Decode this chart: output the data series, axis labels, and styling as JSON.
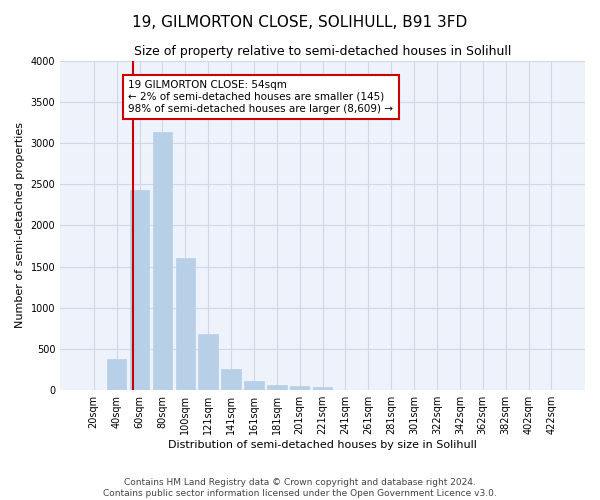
{
  "title": "19, GILMORTON CLOSE, SOLIHULL, B91 3FD",
  "subtitle": "Size of property relative to semi-detached houses in Solihull",
  "xlabel": "Distribution of semi-detached houses by size in Solihull",
  "ylabel": "Number of semi-detached properties",
  "categories": [
    "20sqm",
    "40sqm",
    "60sqm",
    "80sqm",
    "100sqm",
    "121sqm",
    "141sqm",
    "161sqm",
    "181sqm",
    "201sqm",
    "221sqm",
    "241sqm",
    "261sqm",
    "281sqm",
    "301sqm",
    "322sqm",
    "342sqm",
    "362sqm",
    "382sqm",
    "402sqm",
    "422sqm"
  ],
  "values": [
    5,
    380,
    2430,
    3130,
    1610,
    680,
    260,
    110,
    65,
    55,
    40,
    0,
    0,
    0,
    0,
    0,
    0,
    0,
    0,
    0,
    0
  ],
  "bar_color": "#b8cfe8",
  "bar_edge_color": "#b8cfe8",
  "vline_x": 2.0,
  "vline_color": "#cc0000",
  "annotation_text": "19 GILMORTON CLOSE: 54sqm\n← 2% of semi-detached houses are smaller (145)\n98% of semi-detached houses are larger (8,609) →",
  "annotation_box_color": "#ffffff",
  "annotation_box_edge": "#cc0000",
  "ylim": [
    0,
    4000
  ],
  "yticks": [
    0,
    500,
    1000,
    1500,
    2000,
    2500,
    3000,
    3500,
    4000
  ],
  "footer1": "Contains HM Land Registry data © Crown copyright and database right 2024.",
  "footer2": "Contains public sector information licensed under the Open Government Licence v3.0.",
  "grid_color": "#d0d8e8",
  "background_color": "#eef2fa",
  "title_fontsize": 11,
  "subtitle_fontsize": 9,
  "axis_label_fontsize": 8,
  "tick_fontsize": 7,
  "annotation_fontsize": 7.5,
  "footer_fontsize": 6.5
}
